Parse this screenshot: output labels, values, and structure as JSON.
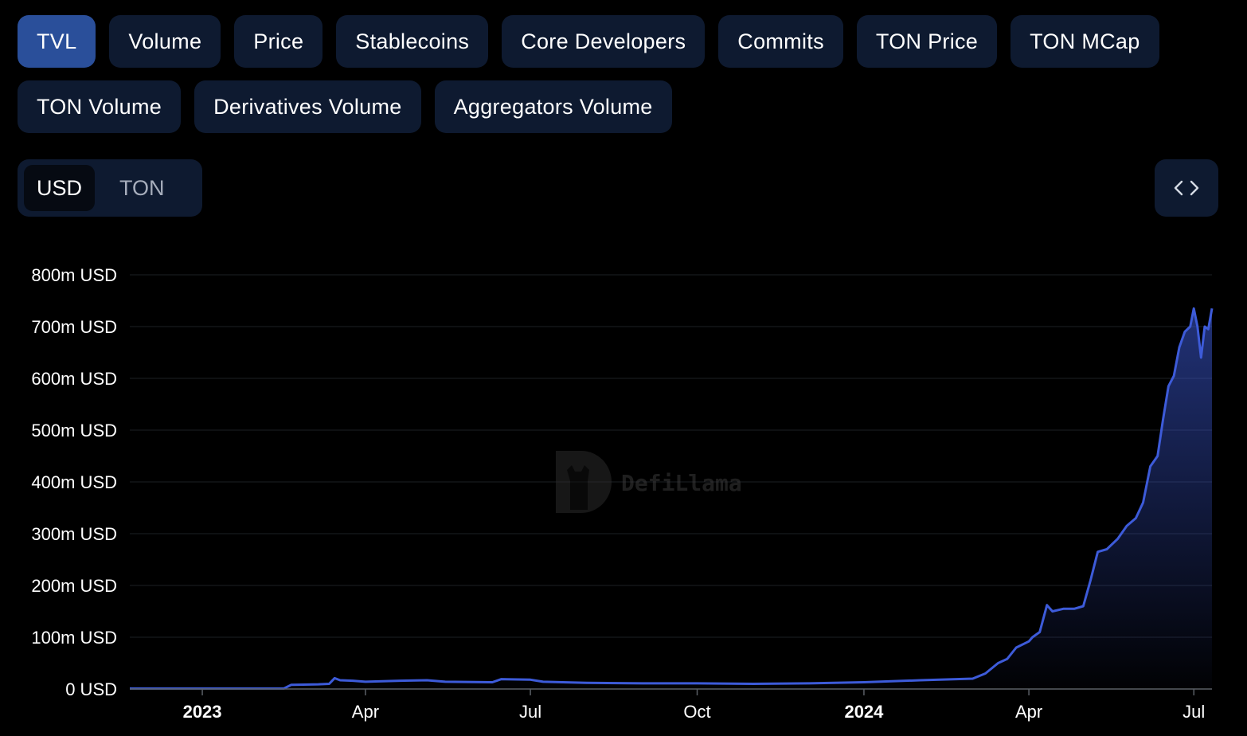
{
  "metric_tabs": [
    {
      "label": "TVL",
      "active": true
    },
    {
      "label": "Volume",
      "active": false
    },
    {
      "label": "Price",
      "active": false
    },
    {
      "label": "Stablecoins",
      "active": false
    },
    {
      "label": "Core Developers",
      "active": false
    },
    {
      "label": "Commits",
      "active": false
    },
    {
      "label": "TON Price",
      "active": false
    },
    {
      "label": "TON MCap",
      "active": false
    },
    {
      "label": "TON Volume",
      "active": false
    },
    {
      "label": "Derivatives Volume",
      "active": false
    },
    {
      "label": "Aggregators Volume",
      "active": false
    }
  ],
  "currency_toggle": {
    "options": [
      "USD",
      "TON"
    ],
    "selected": "USD"
  },
  "embed_icon": "code-brackets-icon",
  "watermark": {
    "text": "DefiLlama",
    "icon": "llama-logo-icon"
  },
  "colors": {
    "accent": "#2a4f9a",
    "pill_bg": "#0e1a30",
    "line": "#3d5bd9",
    "background": "#000000"
  },
  "chart_data": {
    "type": "area",
    "title": "",
    "xlabel": "",
    "ylabel": "",
    "y_unit": "USD",
    "ylim": [
      0,
      800000000
    ],
    "yticks": [
      0,
      100000000,
      200000000,
      300000000,
      400000000,
      500000000,
      600000000,
      700000000,
      800000000
    ],
    "ytick_labels": [
      "0 USD",
      "100m USD",
      "200m USD",
      "300m USD",
      "400m USD",
      "500m USD",
      "600m USD",
      "700m USD",
      "800m USD"
    ],
    "xlim": [
      "2022-11-22",
      "2024-07-11"
    ],
    "xticks": [
      {
        "date": "2023-01-01",
        "label": "2023",
        "bold": true
      },
      {
        "date": "2023-04-01",
        "label": "Apr",
        "bold": false
      },
      {
        "date": "2023-07-01",
        "label": "Jul",
        "bold": false
      },
      {
        "date": "2023-10-01",
        "label": "Oct",
        "bold": false
      },
      {
        "date": "2024-01-01",
        "label": "2024",
        "bold": true
      },
      {
        "date": "2024-04-01",
        "label": "Apr",
        "bold": false
      },
      {
        "date": "2024-07-01",
        "label": "Jul",
        "bold": false
      }
    ],
    "grid": true,
    "series": [
      {
        "name": "",
        "points": [
          [
            "2022-11-22",
            1000000
          ],
          [
            "2023-01-01",
            1000000
          ],
          [
            "2023-02-15",
            1000000
          ],
          [
            "2023-02-19",
            8000000
          ],
          [
            "2023-03-06",
            9000000
          ],
          [
            "2023-03-12",
            10000000
          ],
          [
            "2023-03-15",
            21000000
          ],
          [
            "2023-03-18",
            17000000
          ],
          [
            "2023-03-25",
            16000000
          ],
          [
            "2023-04-01",
            14000000
          ],
          [
            "2023-04-20",
            16000000
          ],
          [
            "2023-05-05",
            17000000
          ],
          [
            "2023-05-15",
            14000000
          ],
          [
            "2023-06-10",
            13000000
          ],
          [
            "2023-06-15",
            19000000
          ],
          [
            "2023-07-01",
            18000000
          ],
          [
            "2023-07-08",
            14000000
          ],
          [
            "2023-08-01",
            12000000
          ],
          [
            "2023-09-01",
            11000000
          ],
          [
            "2023-10-01",
            11000000
          ],
          [
            "2023-11-01",
            10000000
          ],
          [
            "2023-12-01",
            11000000
          ],
          [
            "2024-01-01",
            13000000
          ],
          [
            "2024-02-01",
            17000000
          ],
          [
            "2024-03-01",
            20000000
          ],
          [
            "2024-03-08",
            30000000
          ],
          [
            "2024-03-15",
            50000000
          ],
          [
            "2024-03-20",
            58000000
          ],
          [
            "2024-03-25",
            80000000
          ],
          [
            "2024-04-01",
            92000000
          ],
          [
            "2024-04-03",
            100000000
          ],
          [
            "2024-04-07",
            110000000
          ],
          [
            "2024-04-11",
            162000000
          ],
          [
            "2024-04-14",
            150000000
          ],
          [
            "2024-04-20",
            155000000
          ],
          [
            "2024-04-26",
            155000000
          ],
          [
            "2024-05-01",
            160000000
          ],
          [
            "2024-05-05",
            210000000
          ],
          [
            "2024-05-09",
            265000000
          ],
          [
            "2024-05-14",
            270000000
          ],
          [
            "2024-05-20",
            290000000
          ],
          [
            "2024-05-25",
            315000000
          ],
          [
            "2024-05-30",
            330000000
          ],
          [
            "2024-06-03",
            360000000
          ],
          [
            "2024-06-07",
            430000000
          ],
          [
            "2024-06-11",
            450000000
          ],
          [
            "2024-06-14",
            520000000
          ],
          [
            "2024-06-17",
            585000000
          ],
          [
            "2024-06-20",
            605000000
          ],
          [
            "2024-06-23",
            660000000
          ],
          [
            "2024-06-26",
            690000000
          ],
          [
            "2024-06-29",
            700000000
          ],
          [
            "2024-07-01",
            735000000
          ],
          [
            "2024-07-03",
            700000000
          ],
          [
            "2024-07-05",
            640000000
          ],
          [
            "2024-07-07",
            700000000
          ],
          [
            "2024-07-09",
            695000000
          ],
          [
            "2024-07-11",
            735000000
          ]
        ]
      }
    ]
  }
}
